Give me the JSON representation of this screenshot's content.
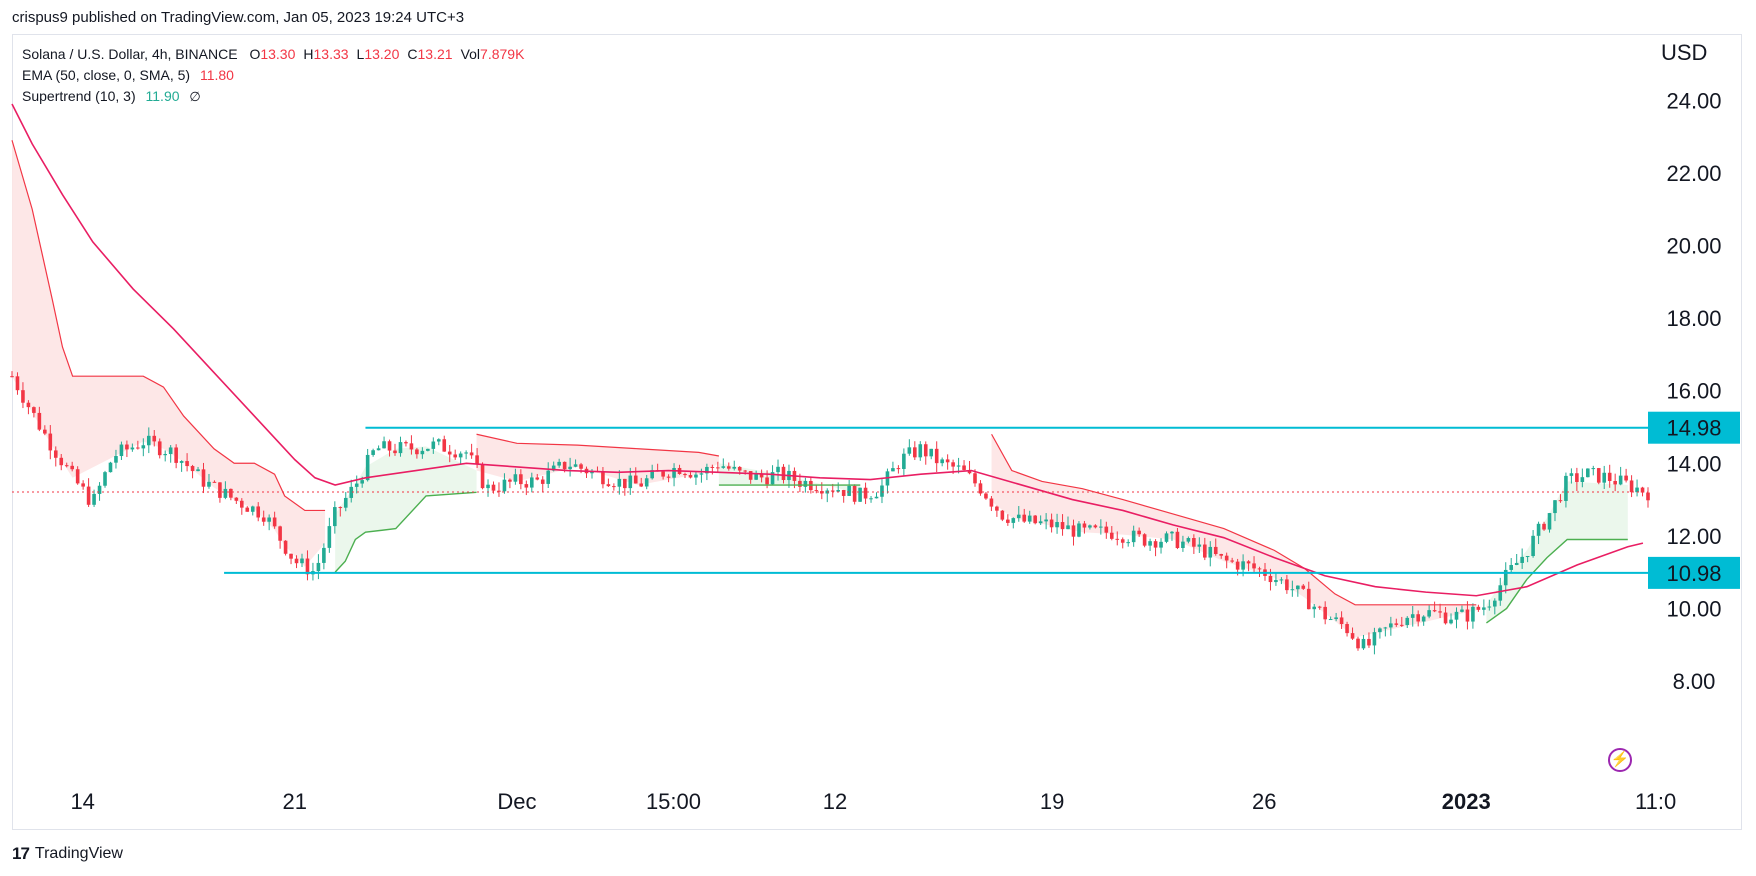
{
  "header": {
    "published": "crispus9 published on TradingView.com, Jan 05, 2023 19:24 UTC+3"
  },
  "legend": {
    "symbol": "Solana / U.S. Dollar, 4h, BINANCE",
    "ohlc": [
      {
        "k": "O",
        "v": "13.30"
      },
      {
        "k": "H",
        "v": "13.33"
      },
      {
        "k": "L",
        "v": "13.20"
      },
      {
        "k": "C",
        "v": "13.21"
      },
      {
        "k": "Vol",
        "v": "7.879K"
      }
    ],
    "ema_label": "EMA (50, close, 0, SMA, 5)",
    "ema_value": "11.80",
    "supertrend_label": "Supertrend (10, 3)",
    "supertrend_value": "11.90",
    "supertrend_extra": "∅"
  },
  "footer": {
    "brand": "TradingView",
    "logo_text": "17"
  },
  "colors": {
    "bull": "#22ab94",
    "bear": "#f23645",
    "ema": "#e91e63",
    "st_up": "#4caf50",
    "st_down": "#f23645",
    "level": "#00bcd4",
    "st_up_fill": "#e9f6ea",
    "st_down_fill": "#fde4e4"
  },
  "chart_data": {
    "type": "candlestick",
    "currency": "USD",
    "y_ticks": [
      "24.00",
      "22.00",
      "20.00",
      "18.00",
      "16.00",
      "14.00",
      "12.00",
      "10.00",
      "8.00"
    ],
    "ylim": [
      6.1,
      25.8
    ],
    "x_ticks": [
      {
        "label": "14",
        "t": 0.07,
        "bold": false
      },
      {
        "label": "21",
        "t": 0.28,
        "bold": false
      },
      {
        "label": "Dec",
        "t": 0.5,
        "bold": false
      },
      {
        "label": "15:00",
        "t": 0.655,
        "bold": false
      },
      {
        "label": "12",
        "t": 0.815,
        "bold": false
      },
      {
        "label": "19",
        "t": 1.03,
        "bold": false
      },
      {
        "label": "26",
        "t": 1.24,
        "bold": false
      },
      {
        "label": "2023",
        "t": 1.44,
        "bold": true
      },
      {
        "label": "11:0",
        "t": 1.62,
        "bold": false
      }
    ],
    "levels": [
      {
        "value": 14.98,
        "label": "14.98",
        "from": 0.35
      },
      {
        "value": 10.98,
        "label": "10.98",
        "from": 0.21
      }
    ],
    "current_price": 13.21,
    "price_path": [
      [
        0.0,
        16.4
      ],
      [
        0.03,
        14.9
      ],
      [
        0.06,
        13.6
      ],
      [
        0.08,
        12.9
      ],
      [
        0.1,
        14.2
      ],
      [
        0.13,
        14.6
      ],
      [
        0.16,
        14.3
      ],
      [
        0.19,
        13.5
      ],
      [
        0.22,
        13.0
      ],
      [
        0.25,
        12.6
      ],
      [
        0.28,
        11.3
      ],
      [
        0.3,
        11.0
      ],
      [
        0.32,
        12.6
      ],
      [
        0.34,
        13.4
      ],
      [
        0.36,
        14.4
      ],
      [
        0.39,
        14.4
      ],
      [
        0.42,
        14.5
      ],
      [
        0.45,
        14.3
      ],
      [
        0.47,
        13.3
      ],
      [
        0.5,
        13.5
      ],
      [
        0.52,
        13.5
      ],
      [
        0.55,
        14.0
      ],
      [
        0.58,
        13.7
      ],
      [
        0.6,
        13.5
      ],
      [
        0.62,
        13.4
      ],
      [
        0.64,
        13.7
      ],
      [
        0.66,
        13.9
      ],
      [
        0.68,
        13.7
      ],
      [
        0.7,
        14.0
      ],
      [
        0.72,
        13.7
      ],
      [
        0.74,
        13.6
      ],
      [
        0.76,
        13.7
      ],
      [
        0.78,
        13.5
      ],
      [
        0.8,
        13.4
      ],
      [
        0.82,
        13.3
      ],
      [
        0.84,
        13.1
      ],
      [
        0.86,
        13.3
      ],
      [
        0.88,
        14.1
      ],
      [
        0.9,
        14.4
      ],
      [
        0.92,
        14.0
      ],
      [
        0.94,
        13.8
      ],
      [
        0.96,
        13.3
      ],
      [
        0.98,
        12.6
      ],
      [
        1.0,
        12.4
      ],
      [
        1.03,
        12.3
      ],
      [
        1.06,
        12.1
      ],
      [
        1.09,
        12.1
      ],
      [
        1.12,
        11.9
      ],
      [
        1.15,
        11.9
      ],
      [
        1.18,
        11.6
      ],
      [
        1.2,
        11.3
      ],
      [
        1.22,
        11.2
      ],
      [
        1.24,
        11.0
      ],
      [
        1.26,
        10.7
      ],
      [
        1.28,
        10.3
      ],
      [
        1.3,
        9.8
      ],
      [
        1.32,
        9.5
      ],
      [
        1.34,
        8.9
      ],
      [
        1.36,
        9.4
      ],
      [
        1.38,
        9.8
      ],
      [
        1.4,
        9.9
      ],
      [
        1.42,
        9.8
      ],
      [
        1.44,
        9.8
      ],
      [
        1.46,
        10.1
      ],
      [
        1.48,
        10.9
      ],
      [
        1.5,
        11.6
      ],
      [
        1.52,
        12.5
      ],
      [
        1.54,
        13.5
      ],
      [
        1.56,
        13.7
      ],
      [
        1.58,
        13.6
      ],
      [
        1.6,
        13.4
      ],
      [
        1.62,
        13.2
      ]
    ],
    "ema_path": [
      [
        0.0,
        23.9
      ],
      [
        0.02,
        22.8
      ],
      [
        0.05,
        21.4
      ],
      [
        0.08,
        20.1
      ],
      [
        0.12,
        18.8
      ],
      [
        0.16,
        17.7
      ],
      [
        0.2,
        16.5
      ],
      [
        0.24,
        15.3
      ],
      [
        0.28,
        14.1
      ],
      [
        0.3,
        13.6
      ],
      [
        0.32,
        13.4
      ],
      [
        0.35,
        13.6
      ],
      [
        0.4,
        13.8
      ],
      [
        0.45,
        14.0
      ],
      [
        0.5,
        13.9
      ],
      [
        0.55,
        13.8
      ],
      [
        0.6,
        13.75
      ],
      [
        0.65,
        13.8
      ],
      [
        0.7,
        13.75
      ],
      [
        0.75,
        13.7
      ],
      [
        0.8,
        13.6
      ],
      [
        0.85,
        13.55
      ],
      [
        0.9,
        13.7
      ],
      [
        0.95,
        13.8
      ],
      [
        1.0,
        13.4
      ],
      [
        1.05,
        13.0
      ],
      [
        1.1,
        12.7
      ],
      [
        1.15,
        12.3
      ],
      [
        1.2,
        11.95
      ],
      [
        1.25,
        11.4
      ],
      [
        1.3,
        10.9
      ],
      [
        1.35,
        10.6
      ],
      [
        1.4,
        10.45
      ],
      [
        1.45,
        10.35
      ],
      [
        1.5,
        10.6
      ],
      [
        1.55,
        11.2
      ],
      [
        1.6,
        11.7
      ],
      [
        1.615,
        11.8
      ]
    ],
    "supertrend_down": [
      [
        0.0,
        22.9
      ],
      [
        0.02,
        21.0
      ],
      [
        0.04,
        18.5
      ],
      [
        0.05,
        17.2
      ],
      [
        0.06,
        16.4
      ],
      [
        0.13,
        16.4
      ],
      [
        0.15,
        16.1
      ],
      [
        0.17,
        15.3
      ],
      [
        0.2,
        14.4
      ],
      [
        0.22,
        14.0
      ],
      [
        0.24,
        14.0
      ],
      [
        0.26,
        13.7
      ],
      [
        0.27,
        13.1
      ],
      [
        0.29,
        12.7
      ],
      [
        0.31,
        12.7
      ]
    ],
    "supertrend_up": [
      [
        0.32,
        11.0
      ],
      [
        0.33,
        11.3
      ],
      [
        0.34,
        11.9
      ],
      [
        0.35,
        12.1
      ],
      [
        0.38,
        12.2
      ],
      [
        0.41,
        13.1
      ],
      [
        0.46,
        13.2
      ]
    ],
    "supertrend_down2": [
      [
        0.46,
        14.8
      ],
      [
        0.5,
        14.55
      ],
      [
        0.56,
        14.5
      ],
      [
        0.62,
        14.4
      ],
      [
        0.68,
        14.3
      ],
      [
        0.7,
        14.2
      ]
    ],
    "supertrend_up2": [
      [
        0.7,
        13.4
      ],
      [
        0.76,
        13.4
      ],
      [
        0.82,
        13.4
      ],
      [
        0.84,
        13.4
      ]
    ],
    "supertrend_down3": [
      [
        0.97,
        14.8
      ],
      [
        0.99,
        13.8
      ],
      [
        1.02,
        13.5
      ],
      [
        1.06,
        13.3
      ],
      [
        1.1,
        13.0
      ],
      [
        1.15,
        12.6
      ],
      [
        1.2,
        12.2
      ],
      [
        1.25,
        11.6
      ],
      [
        1.28,
        11.1
      ],
      [
        1.31,
        10.4
      ],
      [
        1.33,
        10.1
      ],
      [
        1.45,
        10.1
      ]
    ],
    "supertrend_up3": [
      [
        1.46,
        9.6
      ],
      [
        1.48,
        10.0
      ],
      [
        1.5,
        10.8
      ],
      [
        1.52,
        11.4
      ],
      [
        1.54,
        11.9
      ],
      [
        1.6,
        11.9
      ]
    ]
  }
}
